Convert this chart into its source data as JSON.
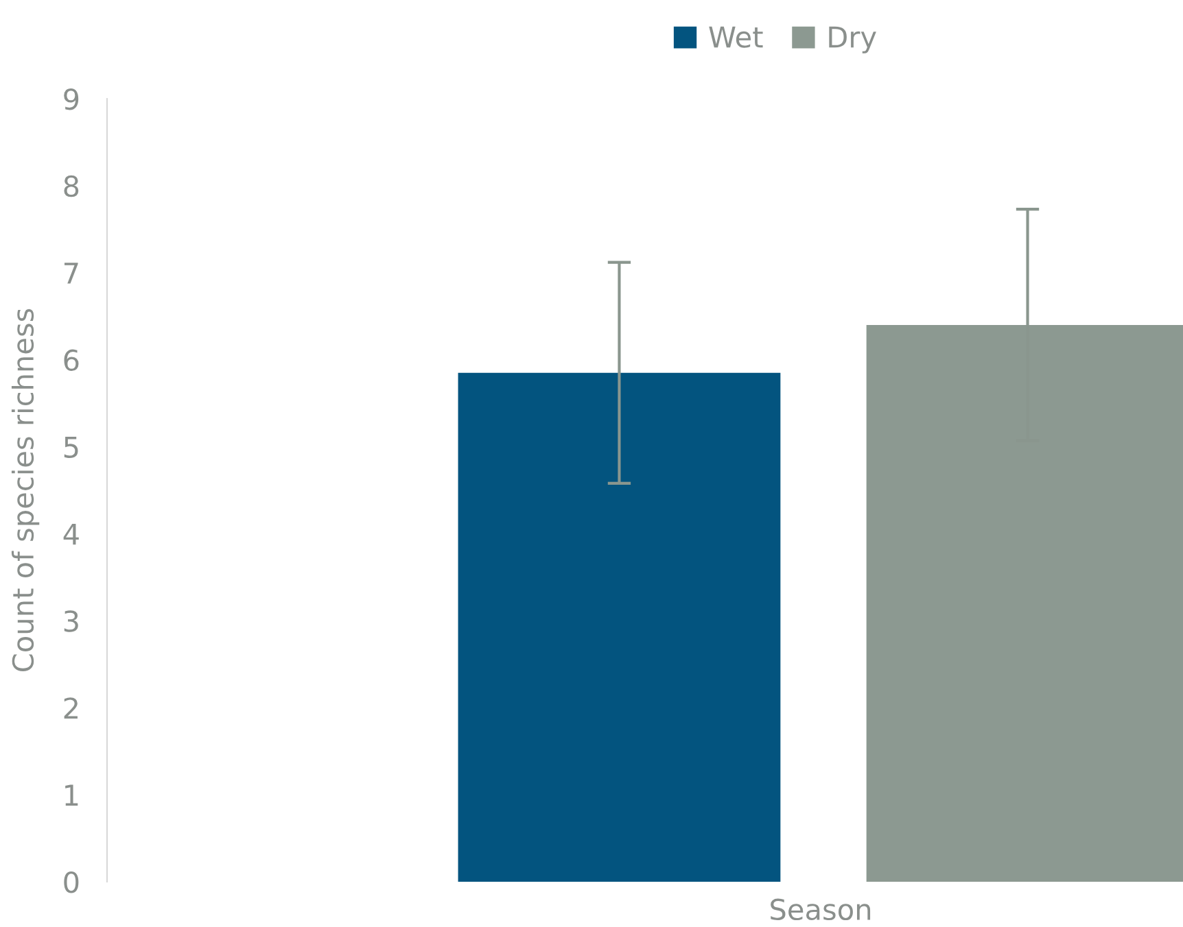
{
  "chart_data": {
    "type": "bar",
    "xlabel": "Season",
    "ylabel": "Count of species richness",
    "categories": [
      null
    ],
    "series": [
      {
        "name": "Wet",
        "color": "#03547f",
        "values": [
          5.85
        ],
        "errors": [
          1.27
        ]
      },
      {
        "name": "Dry",
        "color": "#8c9991",
        "values": [
          6.4
        ],
        "errors": [
          1.33
        ]
      }
    ],
    "ylim": [
      0,
      9
    ],
    "yticks": [
      0,
      1,
      2,
      3,
      4,
      5,
      6,
      7,
      8,
      9
    ],
    "grid": false,
    "legend": "top"
  }
}
